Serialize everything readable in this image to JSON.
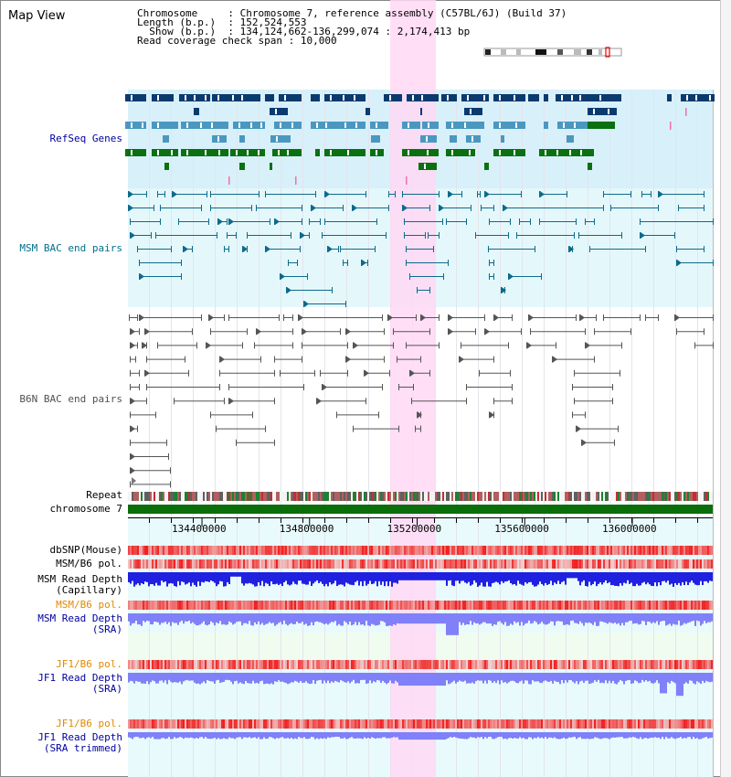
{
  "title": "Map View",
  "info": [
    {
      "key": "Chromosome    ",
      "value": "Chromosome 7, reference assembly (C57BL/6J) (Build 37)"
    },
    {
      "key": "Length (b.p.) ",
      "value": "152,524,553"
    },
    {
      "key": "  Show (b.p.) ",
      "value": "134,124,662-136,299,074 : 2,174,413 bp"
    },
    {
      "key": "Read coverage check span",
      "value": "10,000"
    }
  ],
  "tracks": {
    "refseq": "RefSeq Genes",
    "msm_bac": "MSM BAC end pairs",
    "b6n_bac": "B6N BAC end pairs",
    "repeat": "Repeat",
    "chromosome": "chromosome 7",
    "dbsnp": "dbSNP(Mouse)",
    "msm_b6_pol_1": "MSM/B6 pol.",
    "msm_depth_cap_1": "MSM Read Depth",
    "msm_depth_cap_2": "(Capillary)",
    "msm_b6_pol_2": "MSM/B6 pol.",
    "msm_depth_sra_1": "MSM Read Depth",
    "msm_depth_sra_2": "(SRA)",
    "jf1_b6_pol_1": "JF1/B6 pol.",
    "jf1_depth_sra_1": "JF1 Read Depth",
    "jf1_depth_sra_2": "(SRA)",
    "jf1_b6_pol_2": "JF1/B6 pol.",
    "jf1_depth_trim_1": "JF1 Read Depth",
    "jf1_depth_trim_2": "(SRA trimmed)"
  },
  "axis": {
    "ticks": [
      "134400000",
      "134800000",
      "135200000",
      "135600000",
      "136000000"
    ],
    "tick_values": [
      134400000,
      134800000,
      135200000,
      135600000,
      136000000
    ]
  },
  "view_range": {
    "start": 134124662,
    "end": 136299074
  },
  "highlight_range": {
    "start": 135100000,
    "end": 135270000
  },
  "colors": {
    "refseq_bg": "#d8f0fa",
    "bac_bg": "#e4f8fc",
    "highlight": "#ffd8f4",
    "gene_navy": "#0a3a6e",
    "gene_light": "#4a98c0",
    "gene_green": "#0a7010",
    "msm_bac": "#0e6a8a",
    "b6n_bac": "#555555",
    "chromosome_bar": "#0a6e0a",
    "depth_capillary": "#2020e0",
    "depth_sra": "#8080f8",
    "pol": "#f08080"
  }
}
